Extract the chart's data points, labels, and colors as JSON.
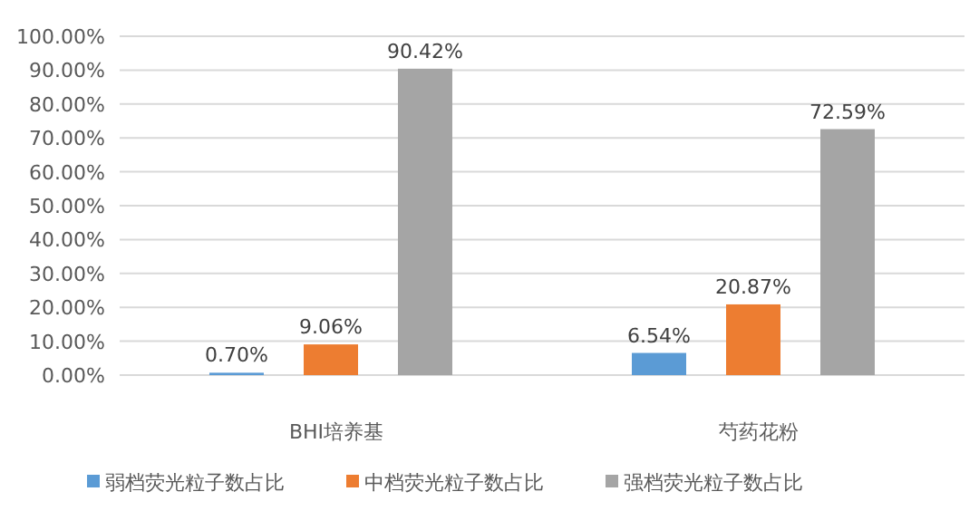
{
  "chart_data": {
    "type": "bar",
    "categories": [
      "BHI培养基",
      "芍药花粉"
    ],
    "series": [
      {
        "name": "弱档荧光粒子数占比",
        "color": "#5b9bd5",
        "values": [
          0.7,
          6.54
        ],
        "value_labels": [
          "0.70%",
          "6.54%"
        ]
      },
      {
        "name": "中档荧光粒子数占比",
        "color": "#ed7d31",
        "values": [
          9.06,
          20.87
        ],
        "value_labels": [
          "9.06%",
          "20.87%"
        ]
      },
      {
        "name": "强档荧光粒子数占比",
        "color": "#a5a5a5",
        "values": [
          90.42,
          72.59
        ],
        "value_labels": [
          "90.42%",
          "72.59%"
        ]
      }
    ],
    "ylim": [
      0,
      100
    ],
    "yticks": [
      {
        "value": 0,
        "label": "0.00%"
      },
      {
        "value": 10,
        "label": "10.00%"
      },
      {
        "value": 20,
        "label": "20.00%"
      },
      {
        "value": 30,
        "label": "30.00%"
      },
      {
        "value": 40,
        "label": "40.00%"
      },
      {
        "value": 50,
        "label": "50.00%"
      },
      {
        "value": 60,
        "label": "60.00%"
      },
      {
        "value": 70,
        "label": "70.00%"
      },
      {
        "value": 80,
        "label": "80.00%"
      },
      {
        "value": 90,
        "label": "90.00%"
      },
      {
        "value": 100,
        "label": "100.00%"
      }
    ],
    "grid": "y",
    "legend": "bottom"
  }
}
